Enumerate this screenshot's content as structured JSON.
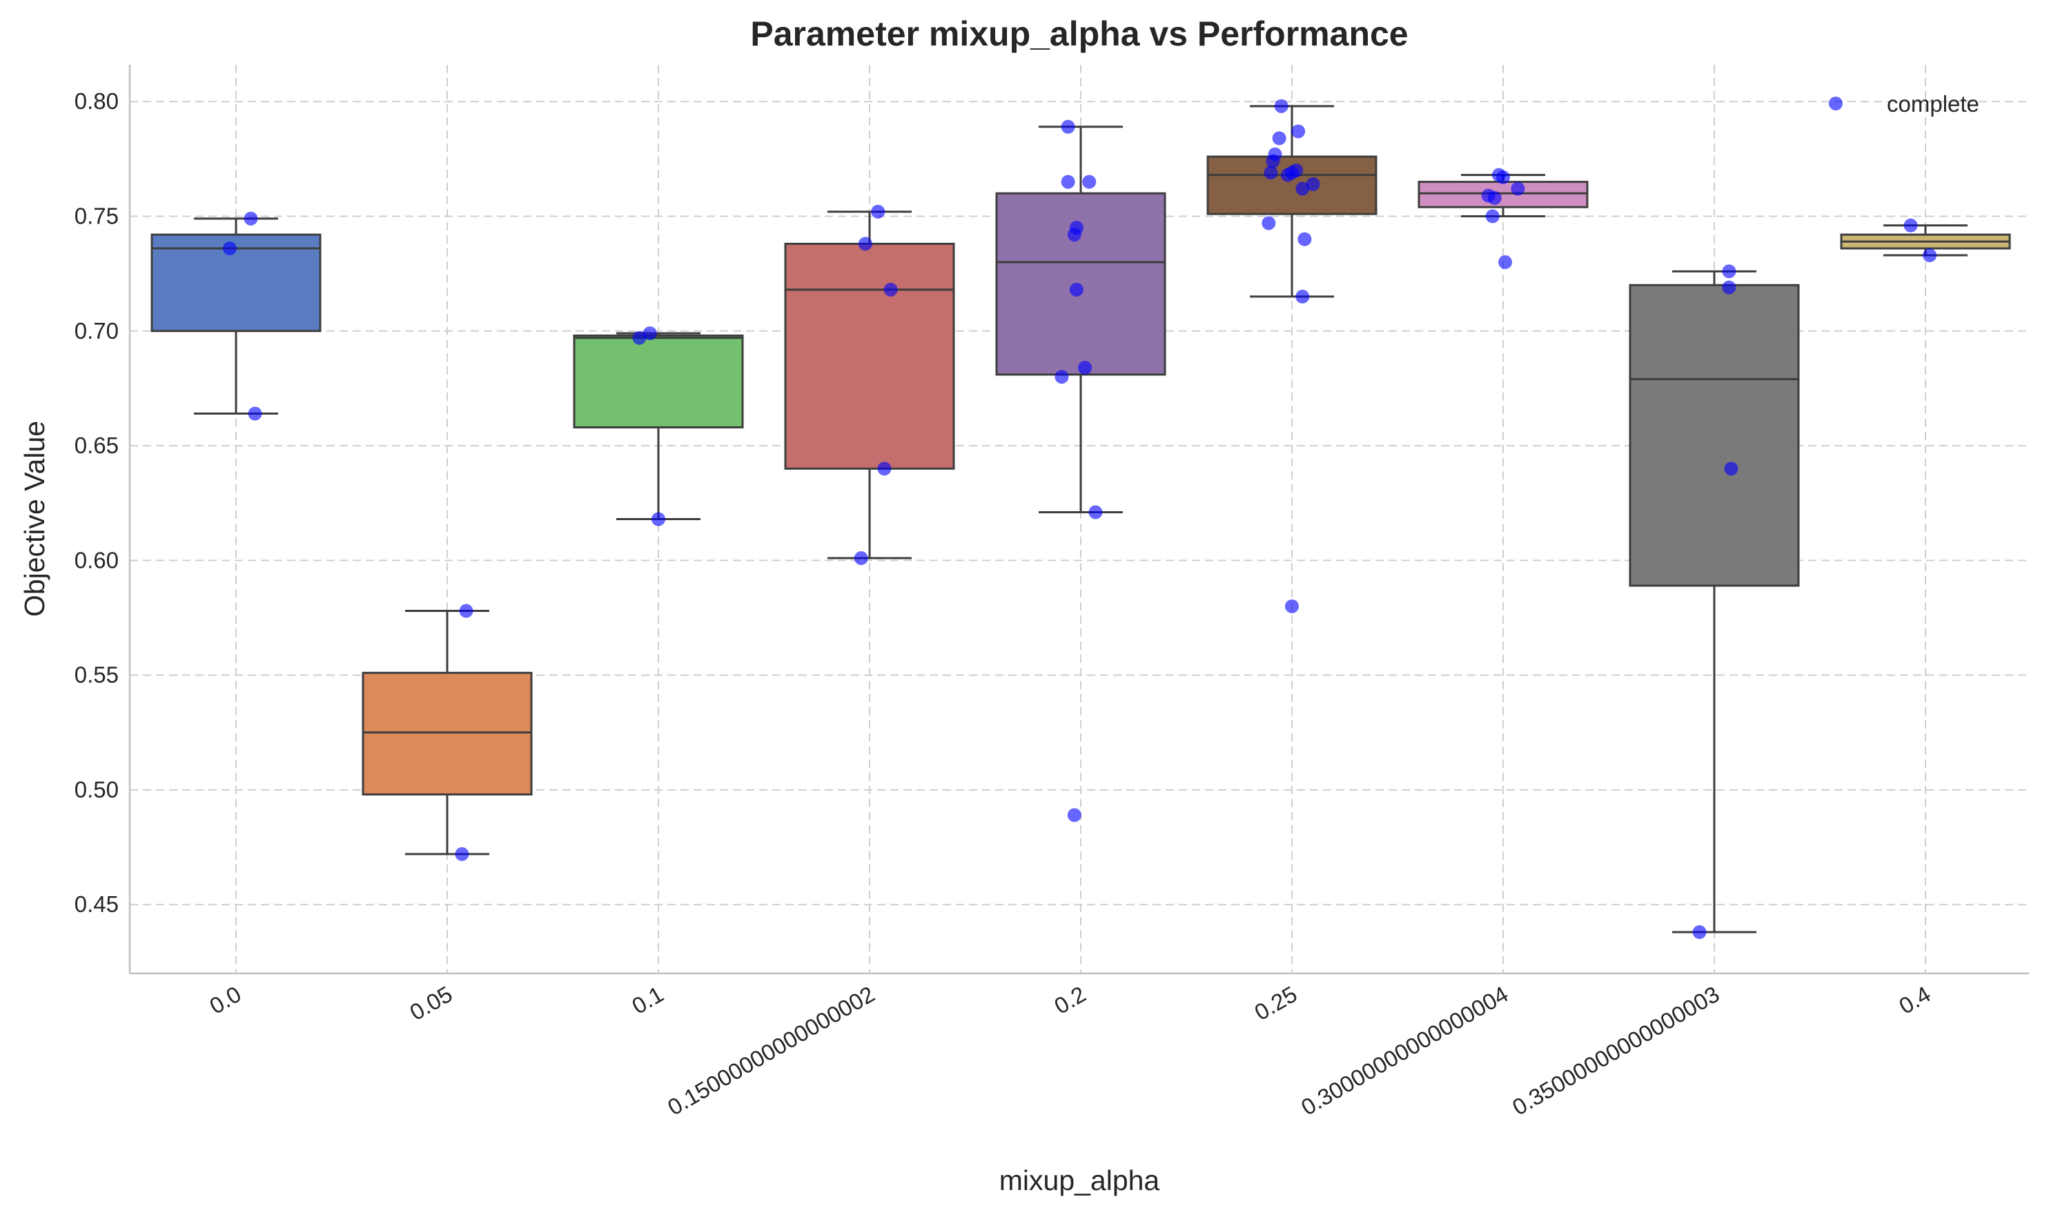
{
  "chart_data": {
    "type": "box",
    "title": "Parameter mixup_alpha vs Performance",
    "xlabel": "mixup_alpha",
    "ylabel": "Objective Value",
    "ylim": [
      0.42,
      0.816
    ],
    "yticks": [
      "0.45",
      "0.50",
      "0.55",
      "0.60",
      "0.65",
      "0.70",
      "0.75",
      "0.80"
    ],
    "grid": true,
    "legend": {
      "position": "top-right",
      "entries": [
        {
          "label": "complete",
          "color": "#0000ff"
        }
      ]
    },
    "categories": [
      "0.0",
      "0.05",
      "0.1",
      "0.15000000000000002",
      "0.2",
      "0.25",
      "0.30000000000000004",
      "0.35000000000000003",
      "0.4"
    ],
    "boxes": [
      {
        "category": "0.0",
        "color": "#5a7dc1",
        "whislo": 0.664,
        "q1": 0.7,
        "med": 0.736,
        "q3": 0.742,
        "whishi": 0.749
      },
      {
        "category": "0.05",
        "color": "#dc8a5a",
        "whislo": 0.472,
        "q1": 0.498,
        "med": 0.525,
        "q3": 0.551,
        "whishi": 0.578
      },
      {
        "category": "0.1",
        "color": "#73c06e",
        "whislo": 0.618,
        "q1": 0.658,
        "med": 0.697,
        "q3": 0.698,
        "whishi": 0.699
      },
      {
        "category": "0.15000000000000002",
        "color": "#c46e6d",
        "whislo": 0.601,
        "q1": 0.64,
        "med": 0.718,
        "q3": 0.738,
        "whishi": 0.752
      },
      {
        "category": "0.2",
        "color": "#9072aa",
        "whislo": 0.621,
        "q1": 0.681,
        "med": 0.73,
        "q3": 0.76,
        "whishi": 0.789
      },
      {
        "category": "0.25",
        "color": "#866045",
        "whislo": 0.715,
        "q1": 0.751,
        "med": 0.768,
        "q3": 0.776,
        "whishi": 0.798
      },
      {
        "category": "0.30000000000000004",
        "color": "#cf8fc0",
        "whislo": 0.75,
        "q1": 0.754,
        "med": 0.76,
        "q3": 0.765,
        "whishi": 0.768
      },
      {
        "category": "0.35000000000000003",
        "color": "#7a7a7a",
        "whislo": 0.438,
        "q1": 0.589,
        "med": 0.679,
        "q3": 0.72,
        "whishi": 0.726
      },
      {
        "category": "0.4",
        "color": "#ccb675",
        "whislo": 0.733,
        "q1": 0.736,
        "med": 0.739,
        "q3": 0.742,
        "whishi": 0.746
      }
    ],
    "points": [
      {
        "category": "0.0",
        "values": [
          0.749,
          0.736,
          0.664
        ],
        "jitter": [
          0.07,
          -0.03,
          0.09
        ]
      },
      {
        "category": "0.05",
        "values": [
          0.578,
          0.472
        ],
        "jitter": [
          0.09,
          0.07
        ]
      },
      {
        "category": "0.1",
        "values": [
          0.699,
          0.697,
          0.618
        ],
        "jitter": [
          -0.04,
          -0.09,
          0.0
        ]
      },
      {
        "category": "0.15000000000000002",
        "values": [
          0.752,
          0.738,
          0.718,
          0.64,
          0.601
        ],
        "jitter": [
          0.04,
          -0.02,
          0.1,
          0.07,
          -0.04
        ]
      },
      {
        "category": "0.2",
        "values": [
          0.789,
          0.765,
          0.765,
          0.745,
          0.742,
          0.718,
          0.684,
          0.68,
          0.621,
          0.489
        ],
        "jitter": [
          -0.06,
          -0.06,
          0.04,
          -0.02,
          -0.03,
          -0.02,
          0.02,
          -0.09,
          0.07,
          -0.03
        ]
      },
      {
        "category": "0.25",
        "values": [
          0.798,
          0.787,
          0.784,
          0.777,
          0.774,
          0.77,
          0.769,
          0.769,
          0.768,
          0.764,
          0.762,
          0.747,
          0.74,
          0.715,
          0.58
        ],
        "jitter": [
          -0.05,
          0.03,
          -0.06,
          -0.08,
          -0.09,
          0.02,
          -0.1,
          0.0,
          -0.02,
          0.1,
          0.05,
          -0.11,
          0.06,
          0.05,
          0.0
        ]
      },
      {
        "category": "0.30000000000000004",
        "values": [
          0.768,
          0.767,
          0.762,
          0.759,
          0.758,
          0.75,
          0.73
        ],
        "jitter": [
          -0.02,
          0.0,
          0.07,
          -0.07,
          -0.04,
          -0.05,
          0.01
        ]
      },
      {
        "category": "0.35000000000000003",
        "values": [
          0.726,
          0.719,
          0.64,
          0.438
        ],
        "jitter": [
          0.07,
          0.07,
          0.08,
          -0.07
        ]
      },
      {
        "category": "0.4",
        "values": [
          0.746,
          0.733
        ],
        "jitter": [
          -0.07,
          0.02
        ]
      }
    ]
  }
}
